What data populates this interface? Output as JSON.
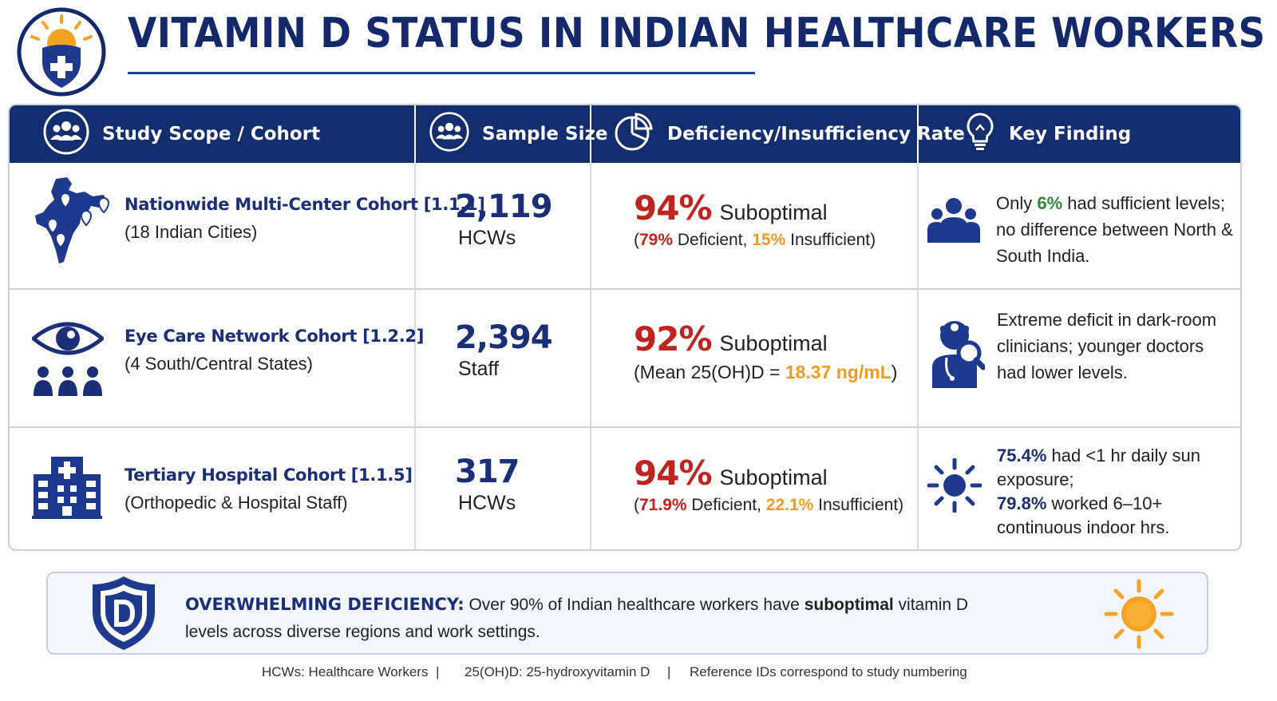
{
  "title": "VITAMIN D STATUS IN INDIAN HEALTHCARE WORKERS",
  "logo_icon": "sun-shield-medical-icon",
  "colors": {
    "navy": "#132e6e",
    "red": "#c0241e",
    "orange": "#f19a1f",
    "green": "#2a8a36"
  },
  "table": {
    "headers": [
      {
        "label": "Study Scope / Cohort",
        "icon": "group-icon"
      },
      {
        "label": "Sample Size",
        "icon": "group-icon"
      },
      {
        "label": "Deficiency/Insufficiency Rate",
        "icon": "pie-chart-icon"
      },
      {
        "label": "Key Finding",
        "icon": "lightbulb-icon"
      }
    ],
    "rows": [
      {
        "icon": "india-map-icon",
        "cohort_name": "Nationwide Multi-Center Cohort [1.1.1]",
        "cohort_sub": "(18 Indian Cities)",
        "sample_number": "2,119",
        "sample_unit": "HCWs",
        "rate_pct": "94%",
        "rate_label": "Suboptimal",
        "rate_sub": {
          "open": "(",
          "v1": "79%",
          "t1": " Deficient, ",
          "v2": "15%",
          "t2": " Insufficient)"
        },
        "finding_icon": "people-group-icon",
        "finding": {
          "p1": "Only ",
          "v1": "6%",
          "p2": " had sufficient levels; no difference between North & South India."
        }
      },
      {
        "icon": "eye-people-icon",
        "cohort_name": "Eye Care Network Cohort [1.2.2]",
        "cohort_sub": "(4 South/Central States)",
        "sample_number": "2,394",
        "sample_unit": "Staff",
        "rate_pct": "92%",
        "rate_label": "Suboptimal",
        "rate_sub": {
          "open": "(Mean 25(OH)D = ",
          "v1": "18.37 ng/mL",
          "close": ")"
        },
        "finding_icon": "doctor-magnifier-icon",
        "finding": {
          "text": "Extreme deficit in dark-room clinicians; younger doctors had lower levels."
        }
      },
      {
        "icon": "hospital-building-icon",
        "cohort_name": "Tertiary Hospital Cohort [1.1.5]",
        "cohort_sub": "(Orthopedic & Hospital Staff)",
        "sample_number": "317",
        "sample_unit": "HCWs",
        "rate_pct": "94%",
        "rate_label": "Suboptimal",
        "rate_sub": {
          "open": "(",
          "v1": "71.9%",
          "t1": " Deficient, ",
          "v2": "22.1%",
          "t2": " Insufficient)"
        },
        "finding_icon": "sun-icon",
        "finding": {
          "v1": "75.4%",
          "p1": " had <1 hr daily sun exposure;",
          "v2": "79.8%",
          "p2": " worked 6–10+ continuous indoor hrs."
        }
      }
    ]
  },
  "callout": {
    "icon": "vitamin-d-shield-icon",
    "sun_icon": "sun-icon",
    "headline": "OVERWHELMING DEFICIENCY:",
    "text_before": " Over 90% of Indian healthcare workers have ",
    "emphasis": "suboptimal",
    "text_after": " vitamin D levels across diverse regions and work settings."
  },
  "footer": {
    "item1": "HCWs: Healthcare Workers",
    "sep": "|",
    "item2": "25(OH)D: 25-hydroxyvitamin D",
    "item3": "Reference IDs correspond to study numbering"
  }
}
